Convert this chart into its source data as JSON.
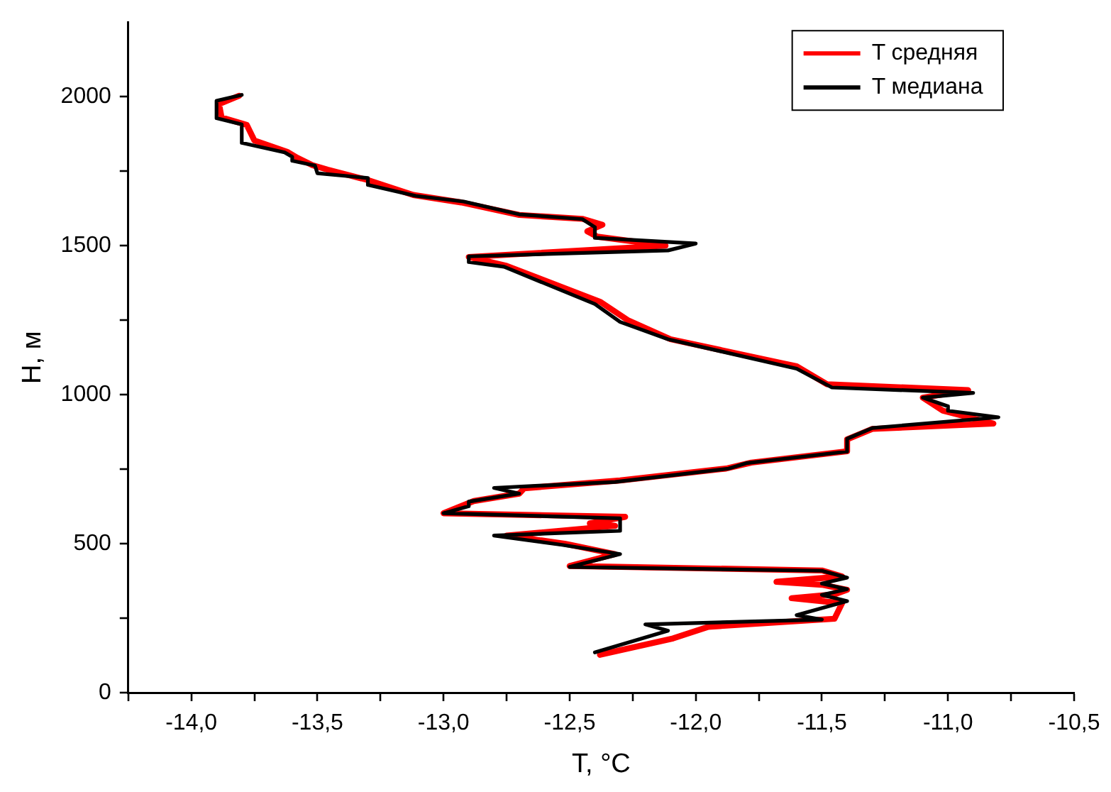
{
  "chart_data": {
    "type": "line",
    "xlabel": "T, °C",
    "ylabel": "H, м",
    "legend": "top right",
    "grid": false,
    "marker": "none",
    "line_style": "solid",
    "xlim": [
      -14.25,
      -10.5
    ],
    "ylim": [
      0,
      2250
    ],
    "xticks": [
      {
        "value": -14.25,
        "label": null
      },
      {
        "value": -14,
        "label": "-14,0"
      },
      {
        "value": -13.75,
        "label": null
      },
      {
        "value": -13.5,
        "label": "-13,5"
      },
      {
        "value": -13.25,
        "label": null
      },
      {
        "value": -13,
        "label": "-13,0"
      },
      {
        "value": -12.75,
        "label": null
      },
      {
        "value": -12.5,
        "label": "-12,5"
      },
      {
        "value": -12.25,
        "label": null
      },
      {
        "value": -12,
        "label": "-12,0"
      },
      {
        "value": -11.75,
        "label": null
      },
      {
        "value": -11.5,
        "label": "-11,5"
      },
      {
        "value": -11.25,
        "label": null
      },
      {
        "value": -11,
        "label": "-11,0"
      },
      {
        "value": -10.75,
        "label": null
      },
      {
        "value": -10.5,
        "label": "-10,5"
      }
    ],
    "yticks": [
      0,
      {
        "value": 250,
        "label": null
      },
      500,
      {
        "value": 750,
        "label": null
      },
      1000,
      {
        "value": 1250,
        "label": null
      },
      1500,
      {
        "value": 1750,
        "label": null
      },
      2000
    ],
    "series": [
      {
        "name": "T средняя",
        "color": "#ff0000",
        "x": [
          -13.81,
          -13.89,
          -13.88,
          -13.78,
          -13.75,
          -13.62,
          -13.58,
          -13.52,
          -13.46,
          -13.3,
          -13.12,
          -12.93,
          -12.7,
          -12.45,
          -12.37,
          -12.43,
          -12.39,
          -12.12,
          -12.9,
          -12.75,
          -12.38,
          -12.27,
          -12.1,
          -11.6,
          -11.48,
          -10.92,
          -11.1,
          -11.02,
          -10.82,
          -11.3,
          -11.4,
          -11.4,
          -11.78,
          -11.88,
          -12.3,
          -12.68,
          -12.7,
          -12.88,
          -13.0,
          -12.28,
          -12.42,
          -12.32,
          -12.75,
          -12.52,
          -12.32,
          -12.5,
          -11.5,
          -11.42,
          -11.68,
          -11.5,
          -11.4,
          -11.45,
          -11.62,
          -11.42,
          -11.45,
          -11.95,
          -12.09,
          -12.38
        ],
        "values": [
          2003,
          1975,
          1930,
          1905,
          1853,
          1815,
          1795,
          1770,
          1755,
          1720,
          1670,
          1645,
          1603,
          1590,
          1570,
          1548,
          1530,
          1500,
          1462,
          1432,
          1312,
          1250,
          1186,
          1095,
          1035,
          1015,
          990,
          946,
          903,
          885,
          850,
          810,
          772,
          752,
          712,
          686,
          668,
          643,
          602,
          590,
          568,
          560,
          527,
          500,
          465,
          425,
          410,
          390,
          372,
          362,
          345,
          330,
          317,
          300,
          248,
          221,
          182,
          127
        ]
      },
      {
        "name": "T медиана",
        "color": "#000000",
        "x": [
          -13.8,
          -13.9,
          -13.9,
          -13.8,
          -13.8,
          -13.63,
          -13.6,
          -13.6,
          -13.51,
          -13.5,
          -13.3,
          -13.3,
          -13.11,
          -12.92,
          -12.7,
          -12.45,
          -12.4,
          -12.4,
          -12.0,
          -12.11,
          -12.9,
          -12.9,
          -12.76,
          -12.4,
          -12.3,
          -12.11,
          -11.6,
          -11.46,
          -10.9,
          -11.1,
          -11.0,
          -11.0,
          -10.8,
          -11.3,
          -11.4,
          -11.4,
          -11.8,
          -11.87,
          -12.32,
          -12.8,
          -12.7,
          -12.9,
          -12.9,
          -13.0,
          -12.3,
          -12.3,
          -12.8,
          -12.53,
          -12.3,
          -12.5,
          -11.5,
          -11.4,
          -11.5,
          -11.4,
          -11.5,
          -11.4,
          -11.6,
          -11.5,
          -12.2,
          -12.11,
          -12.4
        ],
        "values": [
          2006,
          1986,
          1928,
          1907,
          1845,
          1813,
          1798,
          1785,
          1769,
          1743,
          1727,
          1704,
          1667,
          1648,
          1605,
          1589,
          1562,
          1526,
          1507,
          1484,
          1464,
          1445,
          1429,
          1304,
          1244,
          1186,
          1087,
          1024,
          1006,
          990,
          961,
          946,
          924,
          888,
          852,
          809,
          770,
          752,
          707,
          687,
          668,
          641,
          626,
          602,
          585,
          543,
          527,
          496,
          465,
          422,
          409,
          386,
          366,
          347,
          328,
          307,
          260,
          245,
          229,
          208,
          135
        ]
      }
    ]
  }
}
